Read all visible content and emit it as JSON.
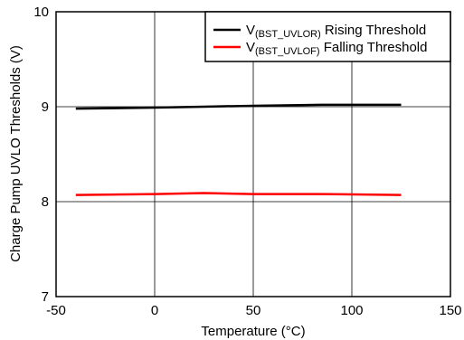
{
  "chart_data": {
    "type": "line",
    "xlabel": "Temperature (°C)",
    "ylabel": "Charge Pump UVLO Thresholds (V)",
    "xlim": [
      -50,
      150
    ],
    "ylim": [
      7,
      10
    ],
    "xticks": [
      -50,
      0,
      50,
      100,
      150
    ],
    "yticks": [
      7,
      8,
      9,
      10
    ],
    "grid": true,
    "legend_position": "top-right",
    "series": [
      {
        "name_main": "V",
        "name_sub": "(BST_UVLOR)",
        "name_rest": " Rising Threshold",
        "color": "#000000",
        "x": [
          -40,
          0,
          25,
          50,
          85,
          125
        ],
        "y": [
          8.98,
          8.99,
          9.0,
          9.01,
          9.02,
          9.02
        ]
      },
      {
        "name_main": "V",
        "name_sub": "(BST_UVLOF)",
        "name_rest": " Falling Threshold",
        "color": "#ff0000",
        "x": [
          -40,
          0,
          25,
          50,
          85,
          125
        ],
        "y": [
          8.07,
          8.08,
          8.09,
          8.08,
          8.08,
          8.07
        ]
      }
    ]
  }
}
